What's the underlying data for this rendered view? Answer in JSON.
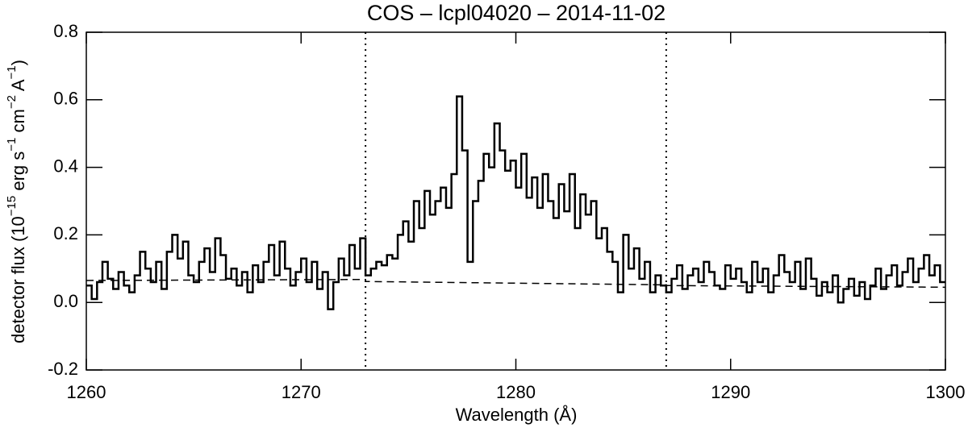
{
  "chart_data": {
    "type": "step",
    "title": "COS – lcpl04020 – 2014-11-02",
    "xlabel": "Wavelength (Å)",
    "ylabel": [
      "detector flux (10",
      "−15",
      " erg s",
      "−1",
      " cm",
      "−2",
      " A",
      "−1",
      ")"
    ],
    "xlim": [
      1260,
      1300
    ],
    "ylim": [
      -0.2,
      0.8
    ],
    "xticks": [
      1260,
      1270,
      1280,
      1290,
      1300
    ],
    "yticks": [
      -0.2,
      {
        "value": 0,
        "label": "0.0"
      },
      0.2,
      0.4,
      0.6,
      0.8
    ],
    "vlines": [
      1273,
      1287
    ],
    "x": [
      1260,
      1260.25,
      1260.5,
      1260.75,
      1261,
      1261.25,
      1261.5,
      1261.75,
      1262,
      1262.25,
      1262.5,
      1262.75,
      1263,
      1263.25,
      1263.5,
      1263.75,
      1264,
      1264.25,
      1264.5,
      1264.75,
      1265,
      1265.25,
      1265.5,
      1265.75,
      1266,
      1266.25,
      1266.5,
      1266.75,
      1267,
      1267.25,
      1267.5,
      1267.75,
      1268,
      1268.25,
      1268.5,
      1268.75,
      1269,
      1269.25,
      1269.5,
      1269.75,
      1270,
      1270.25,
      1270.5,
      1270.75,
      1271,
      1271.25,
      1271.5,
      1271.75,
      1272,
      1272.25,
      1272.5,
      1272.75,
      1273,
      1273.25,
      1273.5,
      1273.75,
      1274,
      1274.25,
      1274.5,
      1274.75,
      1275,
      1275.25,
      1275.5,
      1275.75,
      1276,
      1276.25,
      1276.5,
      1276.75,
      1277,
      1277.25,
      1277.5,
      1277.75,
      1278,
      1278.25,
      1278.5,
      1278.75,
      1279,
      1279.25,
      1279.5,
      1279.75,
      1280,
      1280.25,
      1280.5,
      1280.75,
      1281,
      1281.25,
      1281.5,
      1281.75,
      1282,
      1282.25,
      1282.5,
      1282.75,
      1283,
      1283.25,
      1283.5,
      1283.75,
      1284,
      1284.25,
      1284.5,
      1284.75,
      1285,
      1285.25,
      1285.5,
      1285.75,
      1286,
      1286.25,
      1286.5,
      1286.75,
      1287,
      1287.25,
      1287.5,
      1287.75,
      1288,
      1288.25,
      1288.5,
      1288.75,
      1289,
      1289.25,
      1289.5,
      1289.75,
      1290,
      1290.25,
      1290.5,
      1290.75,
      1291,
      1291.25,
      1291.5,
      1291.75,
      1292,
      1292.25,
      1292.5,
      1292.75,
      1293,
      1293.25,
      1293.5,
      1293.75,
      1294,
      1294.25,
      1294.5,
      1294.75,
      1295,
      1295.25,
      1295.5,
      1295.75,
      1296,
      1296.25,
      1296.5,
      1296.75,
      1297,
      1297.25,
      1297.5,
      1297.75,
      1298,
      1298.25,
      1298.5,
      1298.75,
      1299,
      1299.25,
      1299.5,
      1299.75
    ],
    "series": [
      {
        "color": "#000000",
        "values": [
          0.05,
          0.01,
          0.06,
          0.12,
          0.07,
          0.04,
          0.09,
          0.05,
          0.03,
          0.08,
          0.15,
          0.1,
          0.06,
          0.12,
          0.04,
          0.15,
          0.2,
          0.13,
          0.18,
          0.08,
          0.06,
          0.12,
          0.16,
          0.09,
          0.19,
          0.14,
          0.07,
          0.1,
          0.05,
          0.09,
          0.03,
          0.11,
          0.06,
          0.12,
          0.17,
          0.08,
          0.18,
          0.1,
          0.05,
          0.09,
          0.13,
          0.06,
          0.12,
          0.04,
          0.09,
          -0.02,
          0.06,
          0.13,
          0.08,
          0.17,
          0.1,
          0.19,
          0.08,
          0.1,
          0.12,
          0.11,
          0.14,
          0.13,
          0.2,
          0.24,
          0.18,
          0.3,
          0.22,
          0.33,
          0.26,
          0.3,
          0.34,
          0.28,
          0.38,
          0.61,
          0.45,
          0.12,
          0.3,
          0.36,
          0.44,
          0.4,
          0.53,
          0.45,
          0.39,
          0.42,
          0.34,
          0.44,
          0.31,
          0.37,
          0.28,
          0.38,
          0.3,
          0.25,
          0.35,
          0.27,
          0.38,
          0.22,
          0.32,
          0.26,
          0.3,
          0.19,
          0.22,
          0.15,
          0.12,
          0.03,
          0.2,
          0.1,
          0.16,
          0.07,
          0.12,
          0.03,
          0.08,
          0.05,
          0.03,
          0.07,
          0.11,
          0.04,
          0.08,
          0.1,
          0.06,
          0.12,
          0.09,
          0.05,
          0.04,
          0.11,
          0.07,
          0.1,
          0.06,
          0.03,
          0.12,
          0.06,
          0.1,
          0.03,
          0.08,
          0.14,
          0.09,
          0.06,
          0.12,
          0.04,
          0.13,
          0.07,
          0.02,
          0.06,
          0.03,
          0.08,
          0,
          0.04,
          0.07,
          0.02,
          0.06,
          0.01,
          0.05,
          0.1,
          0.04,
          0.08,
          0.11,
          0.05,
          0.09,
          0.13,
          0.06,
          0.1,
          0.14,
          0.08,
          0.11,
          0.06
        ]
      }
    ],
    "continuum": {
      "x": [
        1260,
        1273,
        1273,
        1287,
        1287,
        1300
      ],
      "values": [
        0.065,
        0.068,
        0.062,
        0.052,
        0.05,
        0.045
      ],
      "color": "#000000"
    }
  }
}
